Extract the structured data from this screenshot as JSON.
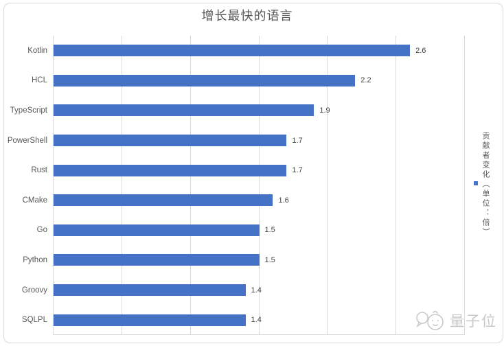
{
  "chart_data": {
    "type": "bar",
    "orientation": "horizontal",
    "title": "增长最快的语言",
    "categories": [
      "Kotlin",
      "HCL",
      "TypeScript",
      "PowerShell",
      "Rust",
      "CMake",
      "Go",
      "Python",
      "Groovy",
      "SQLPL"
    ],
    "values": [
      2.6,
      2.2,
      1.9,
      1.7,
      1.7,
      1.6,
      1.5,
      1.5,
      1.4,
      1.4
    ],
    "series_name": "贡献者变化（单位：倍）",
    "xlabel": "",
    "ylabel": "",
    "xlim": [
      0,
      3.0
    ],
    "gridline_interval": 0.5,
    "grid": true,
    "data_labels": true,
    "legend_position": "right",
    "bar_color": "#4472c4"
  },
  "title": "增长最快的语言",
  "legend": {
    "label": "贡献者变化（单位：倍）",
    "swatch_color": "#4472c4"
  },
  "watermark": {
    "text": "量子位"
  },
  "colors": {
    "bar": "#4472c4",
    "gridline": "#d9d9d9",
    "frame_border": "#d9d9d9",
    "title_text": "#595959",
    "category_text": "#595959",
    "value_text": "#404040",
    "watermark": "#c9c9c9",
    "background": "#ffffff"
  }
}
